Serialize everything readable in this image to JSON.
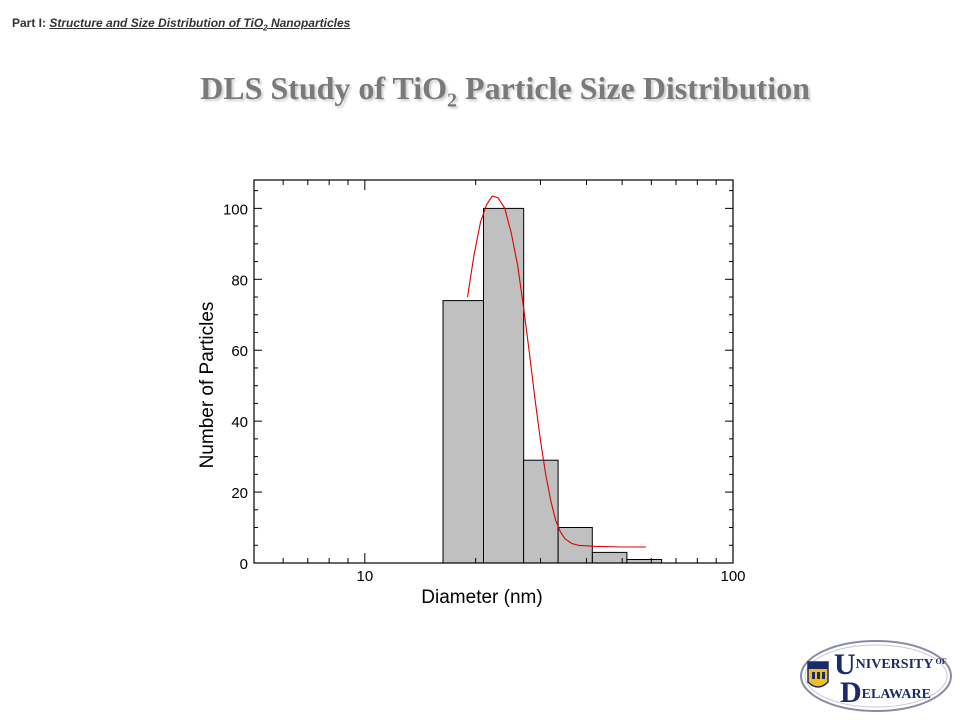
{
  "header": {
    "prefix": "Part I:",
    "subtitle_before_sub": "Structure and Size Distribution of TiO",
    "subtitle_sub": "2",
    "subtitle_after_sub": " Nanoparticles"
  },
  "slide_title": {
    "before_sub": "DLS Study of TiO",
    "sub": "2",
    "after_sub": " Particle Size Distribution"
  },
  "chart_data": {
    "type": "bar",
    "xlabel": "Diameter (nm)",
    "ylabel": "Number of Particles",
    "xscale": "log",
    "xlim": [
      5,
      100
    ],
    "ylim": [
      0,
      108
    ],
    "x_ticks": [
      10,
      100
    ],
    "y_ticks": [
      0,
      20,
      40,
      60,
      80,
      100
    ],
    "grid": false,
    "series": [
      {
        "type": "histogram",
        "bins": [
          {
            "x0": 16.3,
            "x1": 21.0,
            "value": 74
          },
          {
            "x0": 21.0,
            "x1": 27.0,
            "value": 100
          },
          {
            "x0": 27.0,
            "x1": 33.5,
            "value": 29
          },
          {
            "x0": 33.5,
            "x1": 41.5,
            "value": 10
          },
          {
            "x0": 41.5,
            "x1": 51.5,
            "value": 3
          },
          {
            "x0": 51.5,
            "x1": 64.0,
            "value": 1
          }
        ],
        "color": "#c0c0c0"
      },
      {
        "type": "line",
        "color": "#dd0000",
        "points": [
          [
            19.0,
            75.0
          ],
          [
            19.8,
            87.0
          ],
          [
            20.6,
            96.0
          ],
          [
            21.4,
            101.0
          ],
          [
            22.2,
            103.5
          ],
          [
            23.0,
            103.0
          ],
          [
            24.0,
            100.0
          ],
          [
            25.0,
            93.0
          ],
          [
            26.0,
            84.0
          ],
          [
            27.0,
            72.0
          ],
          [
            28.0,
            59.0
          ],
          [
            29.0,
            46.0
          ],
          [
            30.0,
            34.5
          ],
          [
            31.0,
            25.0
          ],
          [
            32.0,
            17.5
          ],
          [
            33.0,
            12.0
          ],
          [
            34.0,
            8.7
          ],
          [
            35.0,
            6.8
          ],
          [
            36.5,
            5.5
          ],
          [
            38.0,
            5.0
          ],
          [
            42.0,
            4.7
          ],
          [
            50.0,
            4.5
          ],
          [
            58.0,
            4.5
          ]
        ]
      }
    ]
  },
  "logo": {
    "line1_initial": "U",
    "line1_rest": "NIVERSITY",
    "line1_of": "OF",
    "line2_initial": "D",
    "line2_rest": "ELAWARE"
  }
}
